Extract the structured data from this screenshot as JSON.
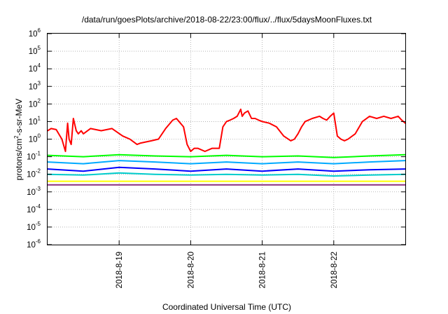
{
  "chart_data": {
    "type": "line",
    "title": "/data/run/goesPlots/archive/2018-08-22/23:00/flux/../flux/5daysMoonFluxes.txt",
    "xlabel": "Coordinated Universal Time (UTC)",
    "ylabel": {
      "prefix": "protons/cm",
      "sup": "2",
      "suffix": "-s-sr-MeV"
    },
    "scale": "log",
    "grid": true,
    "xlim": [
      0,
      5
    ],
    "ylim_exp": [
      -6,
      6
    ],
    "x_ticks": [
      {
        "x": 1,
        "label": "2018-8-19"
      },
      {
        "x": 2,
        "label": "2018-8-20"
      },
      {
        "x": 3,
        "label": "2018-8-21"
      },
      {
        "x": 4,
        "label": "2018-8-22"
      }
    ],
    "y_ticks": [
      {
        "exp": 6,
        "base": "10",
        "sup": "6"
      },
      {
        "exp": 5,
        "base": "10",
        "sup": "5"
      },
      {
        "exp": 4,
        "base": "10",
        "sup": "4"
      },
      {
        "exp": 3,
        "base": "10",
        "sup": "3"
      },
      {
        "exp": 2,
        "base": "10",
        "sup": "2"
      },
      {
        "exp": 1,
        "base": "10",
        "sup": "1"
      },
      {
        "exp": 0,
        "base": "10",
        "sup": "0"
      },
      {
        "exp": -1,
        "base": "10",
        "sup": "-1"
      },
      {
        "exp": -2,
        "base": "10",
        "sup": "-2"
      },
      {
        "exp": -3,
        "base": "10",
        "sup": "-3"
      },
      {
        "exp": -4,
        "base": "10",
        "sup": "-4"
      },
      {
        "exp": -5,
        "base": "10",
        "sup": "-5"
      },
      {
        "exp": -6,
        "base": "10",
        "sup": "-6"
      }
    ],
    "series": [
      {
        "color": "#ff0000",
        "x": [
          0,
          0.05,
          0.12,
          0.2,
          0.25,
          0.28,
          0.3,
          0.33,
          0.36,
          0.4,
          0.43,
          0.47,
          0.5,
          0.6,
          0.75,
          0.9,
          1.05,
          1.15,
          1.25,
          1.3,
          1.45,
          1.55,
          1.65,
          1.75,
          1.8,
          1.9,
          1.95,
          2.0,
          2.05,
          2.1,
          2.2,
          2.3,
          2.4,
          2.45,
          2.5,
          2.55,
          2.6,
          2.65,
          2.7,
          2.72,
          2.75,
          2.8,
          2.85,
          2.9,
          2.95,
          3.0,
          3.1,
          3.2,
          3.3,
          3.4,
          3.45,
          3.5,
          3.55,
          3.6,
          3.7,
          3.8,
          3.85,
          3.9,
          3.95,
          4.0,
          4.05,
          4.1,
          4.15,
          4.2,
          4.3,
          4.4,
          4.5,
          4.6,
          4.7,
          4.8,
          4.9,
          4.95,
          5.0
        ],
        "y": [
          3,
          4,
          3.5,
          1,
          0.2,
          8,
          1,
          0.5,
          15,
          3,
          2,
          3,
          2,
          4,
          3,
          4,
          1.5,
          1,
          0.5,
          0.6,
          0.8,
          1,
          4,
          12,
          15,
          5,
          0.5,
          0.2,
          0.3,
          0.3,
          0.2,
          0.3,
          0.3,
          5,
          10,
          12,
          15,
          20,
          50,
          20,
          30,
          40,
          15,
          15,
          12,
          10,
          8,
          5,
          1.5,
          0.8,
          1,
          2,
          5,
          10,
          15,
          20,
          15,
          12,
          20,
          30,
          1.5,
          1,
          0.8,
          1,
          2,
          10,
          20,
          15,
          20,
          15,
          20,
          12,
          8
        ]
      },
      {
        "color": "#00ff00",
        "x": [
          0,
          0.5,
          1,
          1.5,
          2,
          2.5,
          3,
          3.5,
          4,
          4.5,
          5
        ],
        "y": [
          0.12,
          0.1,
          0.13,
          0.11,
          0.1,
          0.12,
          0.1,
          0.11,
          0.09,
          0.11,
          0.13
        ]
      },
      {
        "color": "#00aaff",
        "x": [
          0,
          0.5,
          1,
          1.5,
          2,
          2.5,
          3,
          3.5,
          4,
          4.5,
          5
        ],
        "y": [
          0.05,
          0.04,
          0.06,
          0.05,
          0.04,
          0.05,
          0.04,
          0.05,
          0.04,
          0.05,
          0.06
        ]
      },
      {
        "color": "#0000ff",
        "x": [
          0,
          0.5,
          1,
          1.5,
          2,
          2.5,
          3,
          3.5,
          4,
          4.5,
          5
        ],
        "y": [
          0.02,
          0.015,
          0.025,
          0.02,
          0.015,
          0.02,
          0.015,
          0.02,
          0.015,
          0.018,
          0.02
        ]
      },
      {
        "color": "#00cccc",
        "x": [
          0,
          0.5,
          1,
          1.5,
          2,
          2.5,
          3,
          3.5,
          4,
          4.5,
          5
        ],
        "y": [
          0.01,
          0.009,
          0.012,
          0.01,
          0.009,
          0.01,
          0.009,
          0.01,
          0.008,
          0.009,
          0.01
        ]
      },
      {
        "color": "#ffff00",
        "x": [
          0,
          5
        ],
        "y": [
          0.004,
          0.004
        ]
      },
      {
        "color": "#8b2f7f",
        "x": [
          0,
          0.5,
          1,
          1.5,
          2,
          2.5,
          3,
          3.5,
          4,
          4.5,
          5
        ],
        "y": [
          0.0025,
          0.0025,
          0.0025,
          0.0025,
          0.0025,
          0.0025,
          0.0025,
          0.0025,
          0.0025,
          0.0025,
          0.0025
        ]
      }
    ]
  }
}
